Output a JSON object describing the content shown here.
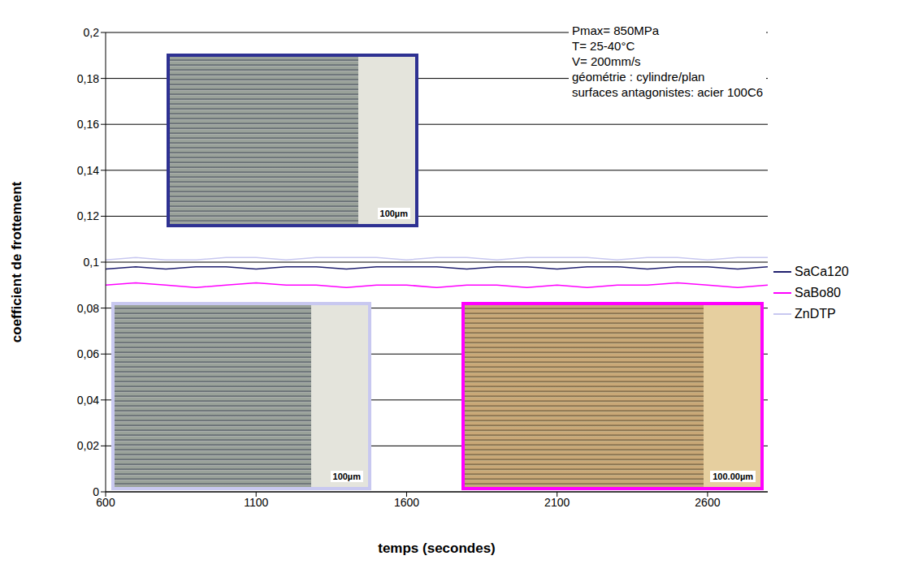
{
  "chart_data": {
    "type": "line",
    "x_label": "temps (secondes)",
    "y_label": "coefficient de frottement",
    "x": [
      600,
      700,
      800,
      900,
      1000,
      1100,
      1200,
      1300,
      1400,
      1500,
      1600,
      1700,
      1800,
      1900,
      2000,
      2100,
      2200,
      2300,
      2400,
      2500,
      2600,
      2700,
      2800
    ],
    "series": [
      {
        "name": "SaCa120",
        "color": "#1f1f6e",
        "values": [
          0.097,
          0.098,
          0.097,
          0.098,
          0.098,
          0.097,
          0.098,
          0.098,
          0.097,
          0.098,
          0.098,
          0.098,
          0.097,
          0.098,
          0.098,
          0.097,
          0.098,
          0.098,
          0.097,
          0.098,
          0.098,
          0.097,
          0.098
        ]
      },
      {
        "name": "SaBo80",
        "color": "#ff00ff",
        "values": [
          0.09,
          0.091,
          0.09,
          0.089,
          0.09,
          0.091,
          0.09,
          0.09,
          0.089,
          0.09,
          0.09,
          0.089,
          0.09,
          0.09,
          0.089,
          0.09,
          0.089,
          0.09,
          0.09,
          0.091,
          0.09,
          0.089,
          0.09
        ]
      },
      {
        "name": "ZnDTP",
        "color": "#c8c8f0",
        "values": [
          0.101,
          0.102,
          0.101,
          0.101,
          0.102,
          0.102,
          0.101,
          0.102,
          0.102,
          0.102,
          0.101,
          0.102,
          0.102,
          0.101,
          0.102,
          0.102,
          0.102,
          0.101,
          0.102,
          0.102,
          0.101,
          0.102,
          0.102
        ]
      }
    ],
    "xlim": [
      600,
      2800
    ],
    "xticks": [
      600,
      1100,
      1600,
      2100,
      2600
    ],
    "ylim": [
      0,
      0.2
    ],
    "yticks": [
      0,
      {
        "value": 0.02,
        "label": "0,02"
      },
      {
        "value": 0.04,
        "label": "0,04"
      },
      {
        "value": 0.06,
        "label": "0,06"
      },
      {
        "value": 0.08,
        "label": "0,08"
      },
      {
        "value": 0.1,
        "label": "0,1"
      },
      {
        "value": 0.12,
        "label": "0,12"
      },
      {
        "value": 0.14,
        "label": "0,14"
      },
      {
        "value": 0.16,
        "label": "0,16"
      },
      {
        "value": 0.18,
        "label": "0,18"
      },
      {
        "value": 0.2,
        "label": "0,2"
      }
    ],
    "grid": true,
    "legend": "right",
    "annotations": {
      "conditions": [
        "Pmax= 850MPa",
        "T= 25-40°C",
        "V= 200mm/s",
        "géométrie : cylindre/plan",
        "surfaces antagonistes: acier 100C6"
      ],
      "scale_bars": [
        "100µm",
        "100µm",
        "100.00µm"
      ]
    }
  }
}
